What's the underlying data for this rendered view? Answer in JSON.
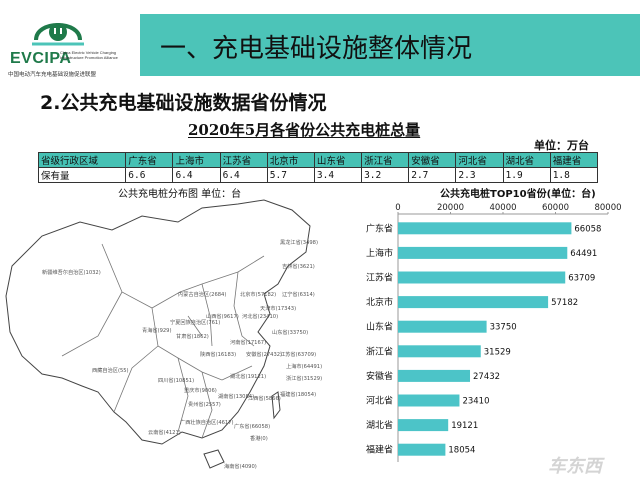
{
  "logo": {
    "name": "EVCIPA",
    "subtitle_en": "China Electric Vehicle Charging Infrastructure Promotion Alliance",
    "name_cn": "中国电动汽车充电基础设施促进联盟"
  },
  "header": {
    "title": "一、充电基础设施整体情况"
  },
  "section": {
    "subtitle": "2.公共充电基础设施数据省份情况"
  },
  "table": {
    "title": "2020年5月各省份公共充电桩总量",
    "unit": "单位：万台",
    "row_header": "省级行政区域",
    "value_header": "保有量",
    "provinces": [
      "广东省",
      "上海市",
      "江苏省",
      "北京市",
      "山东省",
      "浙江省",
      "安徽省",
      "河北省",
      "湖北省",
      "福建省"
    ],
    "values": [
      "6.6",
      "6.4",
      "6.4",
      "5.7",
      "3.4",
      "3.2",
      "2.7",
      "2.3",
      "1.9",
      "1.8"
    ]
  },
  "map": {
    "caption": "公共充电桩分布图  单位：台",
    "labels": [
      {
        "text": "黑龙江省(3498)"
      },
      {
        "text": "吉林省(3621)"
      },
      {
        "text": "新疆维吾尔自治区(1032)"
      },
      {
        "text": "内蒙古自治区(2684)"
      },
      {
        "text": "北京市(57182)"
      },
      {
        "text": "辽宁省(6314)"
      },
      {
        "text": "天津市(17343)"
      },
      {
        "text": "河北省(23410)"
      },
      {
        "text": "青海省(929)"
      },
      {
        "text": "宁夏回族自治区(761)"
      },
      {
        "text": "山西省(9617)"
      },
      {
        "text": "山东省(33750)"
      },
      {
        "text": "甘肃省(1862)"
      },
      {
        "text": "陕西省(16183)"
      },
      {
        "text": "河南省(17167)"
      },
      {
        "text": "江苏省(63709)"
      },
      {
        "text": "西藏自治区(55)"
      },
      {
        "text": "安徽省(27432)"
      },
      {
        "text": "上海市(64491)"
      },
      {
        "text": "四川省(10851)"
      },
      {
        "text": "湖北省(19121)"
      },
      {
        "text": "浙江省(31529)"
      },
      {
        "text": "重庆市(9006)"
      },
      {
        "text": "湖南省(13084)"
      },
      {
        "text": "贵州省(2557)"
      },
      {
        "text": "江西省(5866)"
      },
      {
        "text": "福建省(18054)"
      },
      {
        "text": "云南省(4121)"
      },
      {
        "text": "广西壮族自治区(4617)"
      },
      {
        "text": "广东省(66058)"
      },
      {
        "text": "海南省(4090)"
      },
      {
        "text": "香港(0)"
      }
    ]
  },
  "chart_data": {
    "type": "bar",
    "orientation": "horizontal",
    "title": "公共充电桩TOP10省份(单位：台)",
    "categories": [
      "广东省",
      "上海市",
      "江苏省",
      "北京市",
      "山东省",
      "浙江省",
      "安徽省",
      "河北省",
      "湖北省",
      "福建省"
    ],
    "values": [
      66058,
      64491,
      63709,
      57182,
      33750,
      31529,
      27432,
      23410,
      19121,
      18054
    ],
    "ticks": [
      "0",
      "20000",
      "40000",
      "60000",
      "80000"
    ],
    "xlim": [
      0,
      80000
    ],
    "grid": false,
    "bar_color": "#4cc4c8"
  },
  "watermark": "车东西"
}
